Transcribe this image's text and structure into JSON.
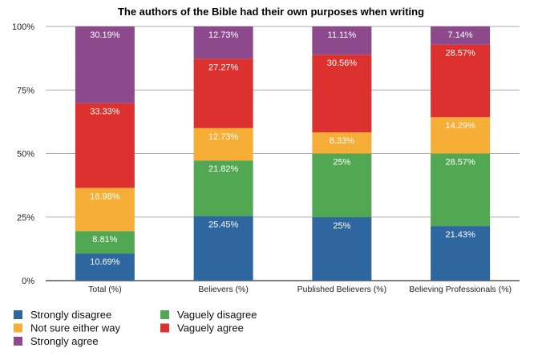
{
  "chart_data": {
    "type": "bar",
    "stacked": true,
    "title": "The authors of the Bible had their own purposes when writing",
    "xlabel": "",
    "ylabel": "",
    "ylim": [
      0,
      100
    ],
    "yticks": [
      "0%",
      "25%",
      "50%",
      "75%",
      "100%"
    ],
    "grid": true,
    "legend_position": "bottom-left",
    "categories": [
      "Total (%)",
      "Believers (%)",
      "Published Believers (%)",
      "Believing Professionals (%)"
    ],
    "series": [
      {
        "name": "Strongly disagree",
        "color": "#2e67a0",
        "values": [
          10.69,
          25.45,
          25,
          21.43
        ],
        "labels": [
          "10.69%",
          "25.45%",
          "25%",
          "21.43%"
        ]
      },
      {
        "name": "Vaguely disagree",
        "color": "#52a852",
        "values": [
          8.81,
          21.82,
          25,
          28.57
        ],
        "labels": [
          "8.81%",
          "21.82%",
          "25%",
          "28.57%"
        ]
      },
      {
        "name": "Not sure either way",
        "color": "#f6ae37",
        "values": [
          16.98,
          12.73,
          8.33,
          14.29
        ],
        "labels": [
          "16.98%",
          "12.73%",
          "8.33%",
          "14.29%"
        ]
      },
      {
        "name": "Vaguely agree",
        "color": "#dc312e",
        "values": [
          33.33,
          27.27,
          30.56,
          28.57
        ],
        "labels": [
          "33.33%",
          "27.27%",
          "30.56%",
          "28.57%"
        ]
      },
      {
        "name": "Strongly agree",
        "color": "#8c4a8c",
        "values": [
          30.19,
          12.73,
          11.11,
          7.14
        ],
        "labels": [
          "30.19%",
          "12.73%",
          "11.11%",
          "7.14%"
        ]
      }
    ]
  }
}
